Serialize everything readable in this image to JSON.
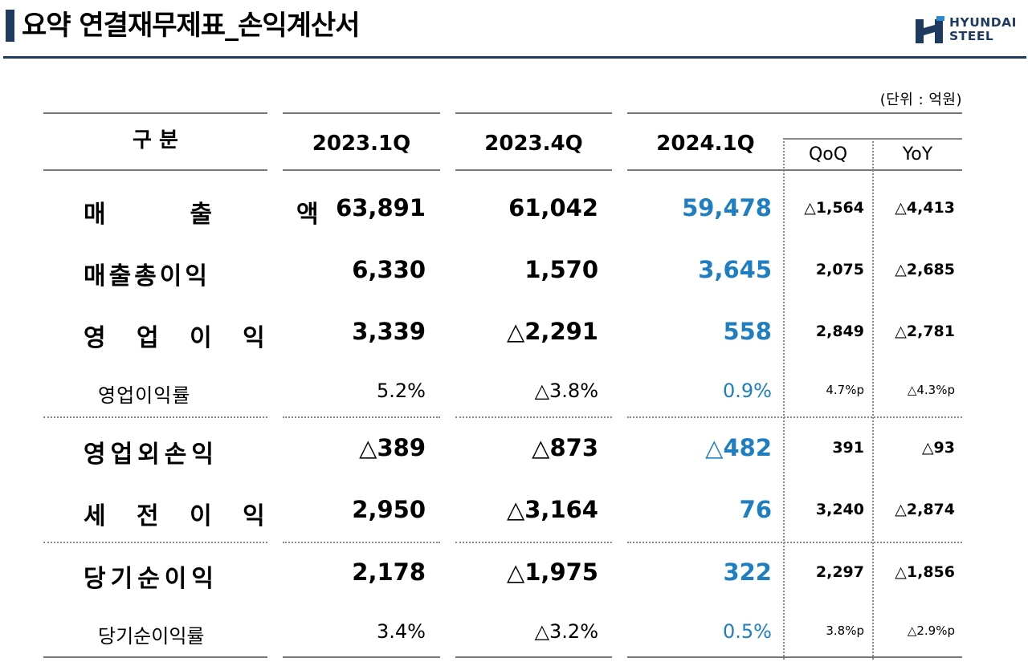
{
  "header": {
    "title": "요약 연결재무제표_손익계산서",
    "logo_line1": "HYUNDAI",
    "logo_line2": "STEEL"
  },
  "unit_label": "(단위 : 억원)",
  "columns": {
    "category": "구 분",
    "c1": "2023.1Q",
    "c2": "2023.4Q",
    "c3": "2024.1Q",
    "qoq": "QoQ",
    "yoy": "YoY"
  },
  "rows": [
    {
      "label": "매  출  액",
      "v1": "63,891",
      "v2": "61,042",
      "v3": "59,478",
      "qoq": "△1,564",
      "yoy": "△4,413",
      "kind": "main"
    },
    {
      "label": "매출총이익",
      "v1": "6,330",
      "v2": "1,570",
      "v3": "3,645",
      "qoq": "2,075",
      "yoy": "△2,685",
      "kind": "main"
    },
    {
      "label": "영 업 이 익",
      "v1": "3,339",
      "v2": "△2,291",
      "v3": "558",
      "qoq": "2,849",
      "yoy": "△2,781",
      "kind": "main"
    },
    {
      "label": "영업이익률",
      "v1": "5.2%",
      "v2": "△3.8%",
      "v3": "0.9%",
      "qoq": "4.7%p",
      "yoy": "△4.3%p",
      "kind": "sub"
    },
    {
      "label": "영업외손익",
      "v1": "△389",
      "v2": "△873",
      "v3": "△482",
      "qoq": "391",
      "yoy": "△93",
      "kind": "main"
    },
    {
      "label": "세 전 이 익",
      "v1": "2,950",
      "v2": "△3,164",
      "v3": "76",
      "qoq": "3,240",
      "yoy": "△2,874",
      "kind": "main"
    },
    {
      "label": "당기순이익",
      "v1": "2,178",
      "v2": "△1,975",
      "v3": "322",
      "qoq": "2,297",
      "yoy": "△1,856",
      "kind": "main"
    },
    {
      "label": "당기순이익률",
      "v1": "3.4%",
      "v2": "△3.2%",
      "v3": "0.5%",
      "qoq": "3.8%p",
      "yoy": "△2.9%p",
      "kind": "sub"
    }
  ],
  "colors": {
    "accent_navy": "#1f3a5f",
    "highlight_blue": "#1f7ec2"
  }
}
